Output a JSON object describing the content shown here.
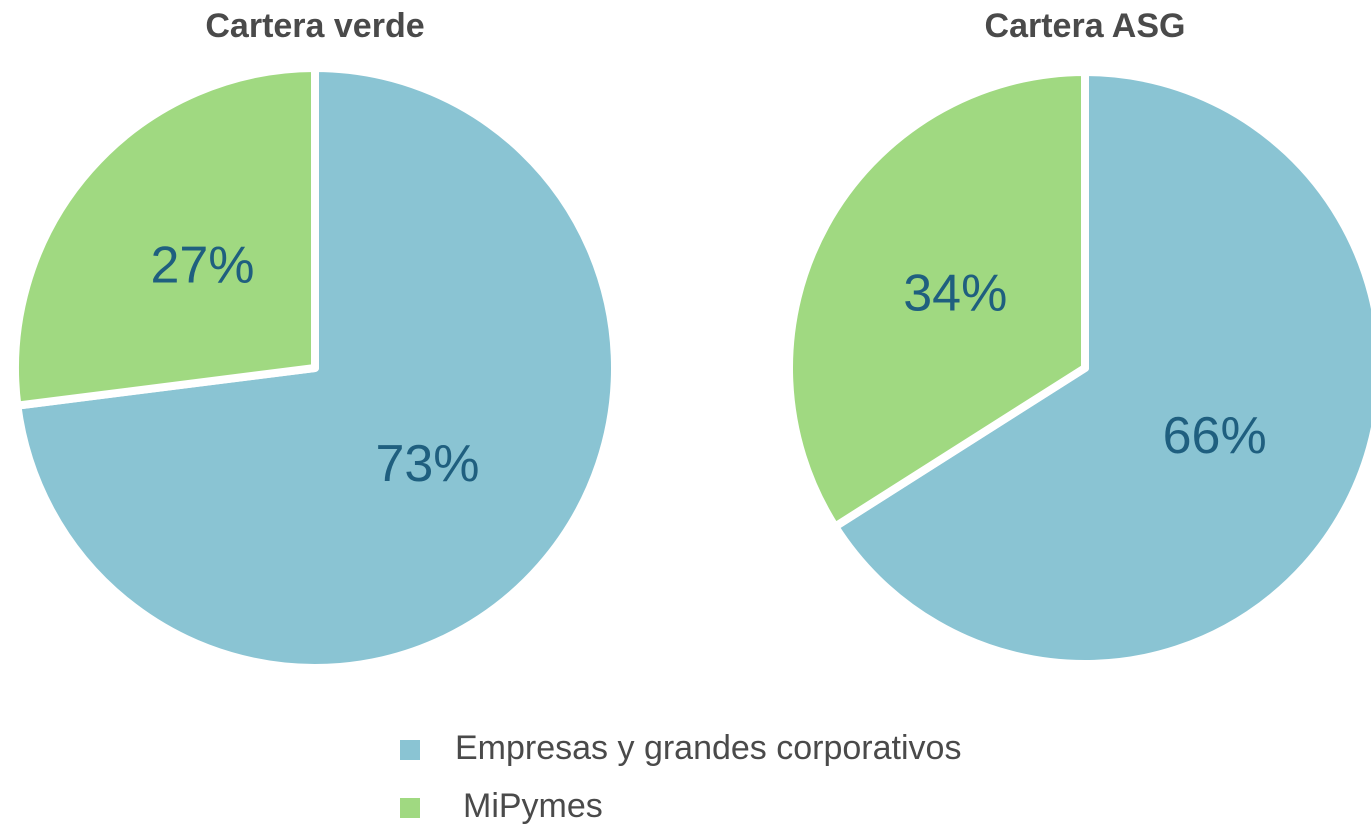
{
  "legend": {
    "items": [
      {
        "name": "Empresas y grandes corporativos",
        "color": "#8ac4d3"
      },
      {
        "name": "MiPymes",
        "color": "#a0d981"
      }
    ]
  },
  "chart_data": [
    {
      "type": "pie",
      "title": "Cartera verde",
      "values": [
        73,
        27
      ],
      "value_labels": [
        "73%",
        "27%"
      ]
    },
    {
      "type": "pie",
      "title": "Cartera ASG",
      "values": [
        66,
        34
      ],
      "value_labels": [
        "66%",
        "34%"
      ]
    }
  ]
}
